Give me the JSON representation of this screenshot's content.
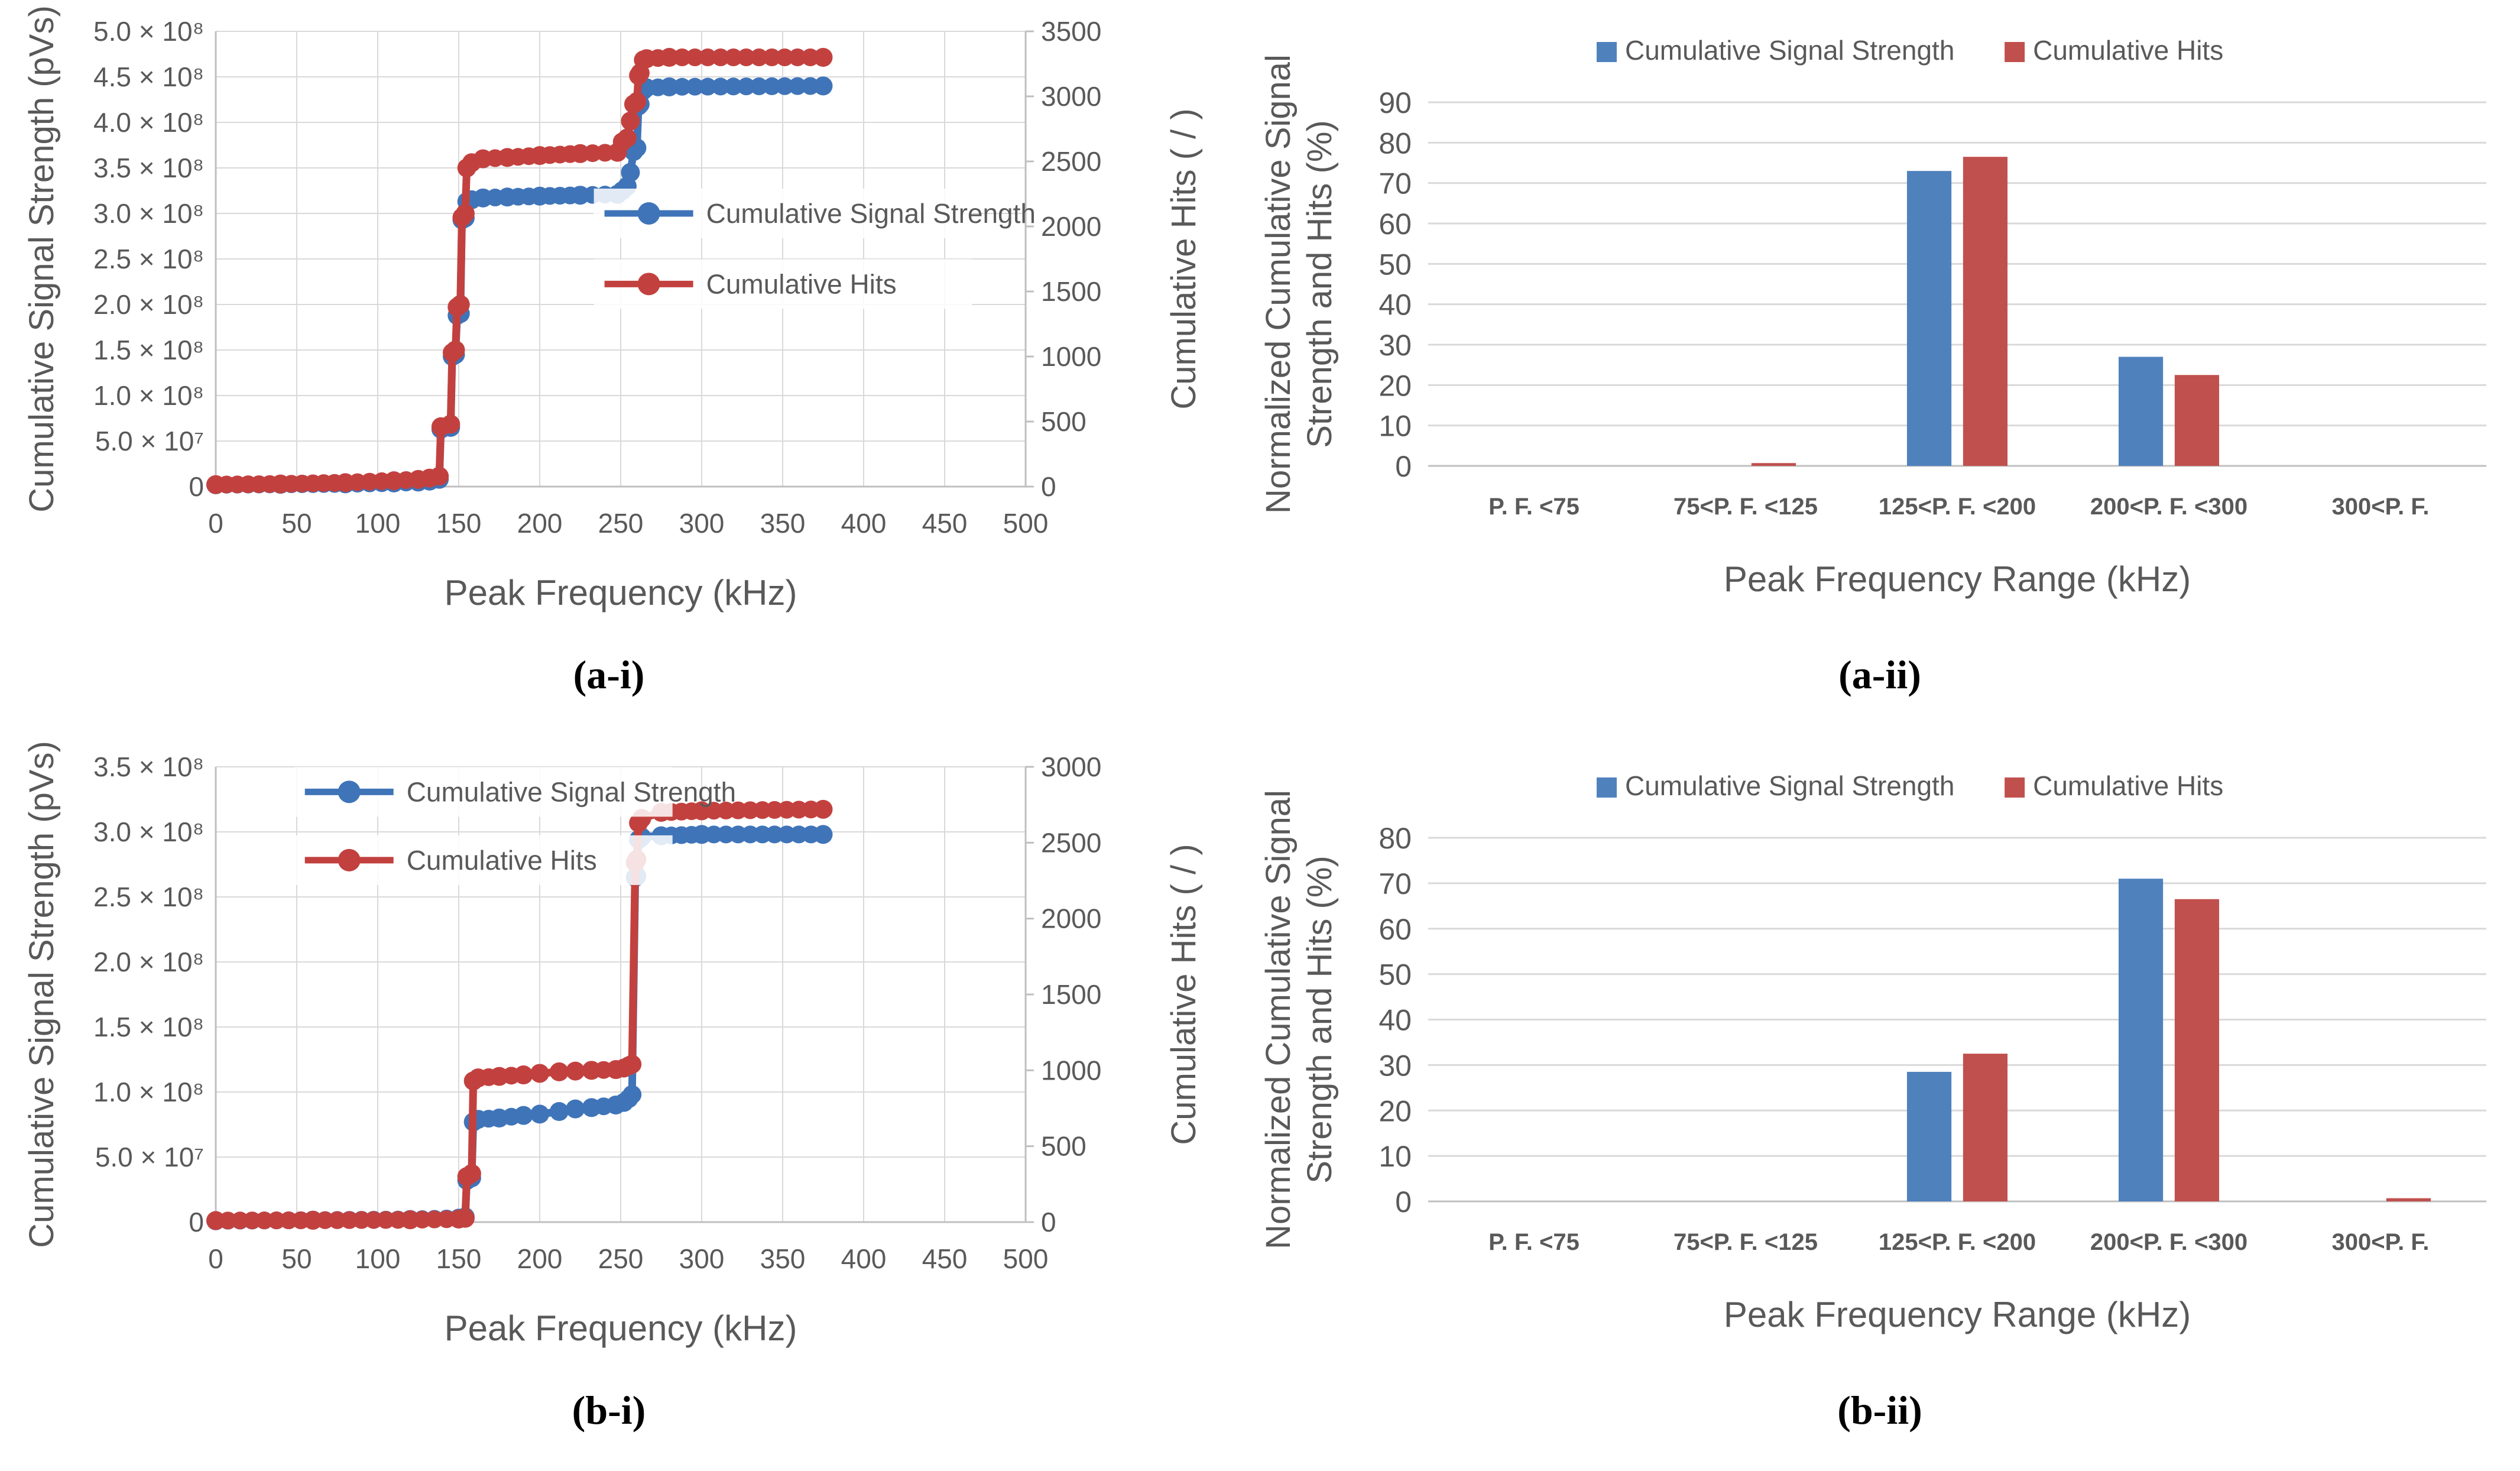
{
  "figure": {
    "captions": {
      "a_i": "(a-i)",
      "a_ii": "(a-ii)",
      "b_i": "(b-i)",
      "b_ii": "(b-ii)"
    }
  },
  "colors": {
    "signal_bar": "#4f81bd",
    "hits_bar": "#c0504d",
    "signal_line": "#3f74b8",
    "hits_line": "#c2413f",
    "grid": "#d9d9d9",
    "axis": "#bfbfbf",
    "text": "#595959"
  },
  "legend_labels": {
    "signal": "Cumulative Signal Strength",
    "hits": "Cumulative Hits"
  },
  "chart_data": [
    {
      "id": "a_i",
      "type": "line",
      "xlabel": "Peak Frequency (kHz)",
      "ylabel_left": "Cumulative Signal Strength (pVs)",
      "ylabel_right": "Cumulative Hits ( / )",
      "xlim": [
        0,
        500
      ],
      "xticks": [
        0,
        50,
        100,
        150,
        200,
        250,
        300,
        350,
        400,
        450,
        500
      ],
      "ylim_left": [
        0,
        500000000.0
      ],
      "yticks_left": {
        "values": [
          0,
          50000000.0,
          100000000.0,
          150000000.0,
          200000000.0,
          250000000.0,
          300000000.0,
          350000000.0,
          400000000.0,
          450000000.0,
          500000000.0
        ],
        "labels": [
          "0",
          "5.0 × 10⁷",
          "1.0 × 10⁸",
          "1.5 × 10⁸",
          "2.0 × 10⁸",
          "2.5 × 10⁸",
          "3.0 × 10⁸",
          "3.5 × 10⁸",
          "4.0 × 10⁸",
          "4.5 × 10⁸",
          "5.0 × 10⁸"
        ]
      },
      "ylim_right": [
        0,
        3500
      ],
      "yticks_right": [
        0,
        500,
        1000,
        1500,
        2000,
        2500,
        3000,
        3500
      ],
      "legend": [
        "Cumulative Signal Strength",
        "Cumulative Hits"
      ],
      "legend_position": "center-right-inside",
      "grid": true,
      "series": [
        {
          "name": "Cumulative Signal Strength",
          "axis": "left",
          "colorKey": "signal_line",
          "points": [
            [
              0,
              2000000.0
            ],
            [
              40,
              2500000.0
            ],
            [
              80,
              3000000.0
            ],
            [
              110,
              4000000.0
            ],
            [
              125,
              5000000.0
            ],
            [
              132,
              6000000.0
            ],
            [
              138,
              8000000.0
            ],
            [
              139,
              63000000.0
            ],
            [
              145,
              65000000.0
            ],
            [
              146,
              143000000.0
            ],
            [
              148,
              145000000.0
            ],
            [
              149,
              188000000.0
            ],
            [
              151,
              190000000.0
            ],
            [
              152,
              293000000.0
            ],
            [
              154,
              295000000.0
            ],
            [
              155,
              313000000.0
            ],
            [
              158,
              315000000.0
            ],
            [
              165,
              317000000.0
            ],
            [
              180,
              318000000.0
            ],
            [
              200,
              319000000.0
            ],
            [
              225,
              320000000.0
            ],
            [
              248,
              321000000.0
            ],
            [
              251,
              325000000.0
            ],
            [
              254,
              330000000.0
            ],
            [
              256,
              345000000.0
            ],
            [
              258,
              368000000.0
            ],
            [
              260,
              372000000.0
            ],
            [
              261,
              418000000.0
            ],
            [
              262,
              420000000.0
            ],
            [
              264,
              435000000.0
            ],
            [
              266,
              438000000.0
            ],
            [
              280,
              439000000.0
            ],
            [
              375,
              440000000.0
            ]
          ]
        },
        {
          "name": "Cumulative Hits",
          "axis": "right",
          "colorKey": "hits_line",
          "points": [
            [
              0,
              15
            ],
            [
              40,
              20
            ],
            [
              80,
              30
            ],
            [
              110,
              45
            ],
            [
              125,
              55
            ],
            [
              132,
              65
            ],
            [
              138,
              80
            ],
            [
              139,
              460
            ],
            [
              145,
              480
            ],
            [
              146,
              1030
            ],
            [
              148,
              1050
            ],
            [
              149,
              1380
            ],
            [
              151,
              1400
            ],
            [
              152,
              2070
            ],
            [
              154,
              2100
            ],
            [
              155,
              2450
            ],
            [
              158,
              2490
            ],
            [
              165,
              2520
            ],
            [
              180,
              2530
            ],
            [
              200,
              2545
            ],
            [
              225,
              2560
            ],
            [
              248,
              2570
            ],
            [
              251,
              2650
            ],
            [
              254,
              2680
            ],
            [
              256,
              2810
            ],
            [
              258,
              2940
            ],
            [
              260,
              2960
            ],
            [
              261,
              3160
            ],
            [
              262,
              3180
            ],
            [
              264,
              3280
            ],
            [
              266,
              3290
            ],
            [
              280,
              3300
            ],
            [
              375,
              3300
            ]
          ]
        }
      ]
    },
    {
      "id": "a_ii",
      "type": "bar",
      "xlabel": "Peak Frequency Range (kHz)",
      "ylabel": "Normalized Cumulative Signal Strength and Hits (%)",
      "ylabel_lines": [
        "Normalized Cumulative Signal",
        "Strength and Hits (%)"
      ],
      "categories": [
        "P. F. <75",
        "75<P. F. <125",
        "125<P. F. <200",
        "200<P. F. <300",
        "300<P. F."
      ],
      "ylim": [
        0,
        90
      ],
      "ytick_step": 10,
      "legend": [
        "Cumulative Signal Strength",
        "Cumulative Hits"
      ],
      "legend_position": "top-center",
      "grid": true,
      "series": [
        {
          "name": "Cumulative Signal Strength",
          "colorKey": "signal_bar",
          "values": [
            0,
            0,
            73,
            27,
            0
          ]
        },
        {
          "name": "Cumulative Hits",
          "colorKey": "hits_bar",
          "values": [
            0,
            0.7,
            76.5,
            22.5,
            0
          ]
        }
      ]
    },
    {
      "id": "b_i",
      "type": "line",
      "xlabel": "Peak Frequency (kHz)",
      "ylabel_left": "Cumulative Signal Strength (pVs)",
      "ylabel_right": "Cumulative Hits ( / )",
      "xlim": [
        0,
        500
      ],
      "xticks": [
        0,
        50,
        100,
        150,
        200,
        250,
        300,
        350,
        400,
        450,
        500
      ],
      "ylim_left": [
        0,
        350000000.0
      ],
      "yticks_left": {
        "values": [
          0,
          50000000.0,
          100000000.0,
          150000000.0,
          200000000.0,
          250000000.0,
          300000000.0,
          350000000.0
        ],
        "labels": [
          "0",
          "5.0 × 10⁷",
          "1.0 × 10⁸",
          "1.5 × 10⁸",
          "2.0 × 10⁸",
          "2.5 × 10⁸",
          "3.0 × 10⁸",
          "3.5 × 10⁸"
        ]
      },
      "ylim_right": [
        0,
        3000
      ],
      "yticks_right": [
        0,
        500,
        1000,
        1500,
        2000,
        2500,
        3000
      ],
      "legend": [
        "Cumulative Signal Strength",
        "Cumulative Hits"
      ],
      "legend_position": "top-left-inside",
      "grid": true,
      "series": [
        {
          "name": "Cumulative Signal Strength",
          "axis": "left",
          "colorKey": "signal_line",
          "points": [
            [
              0,
              1000000.0
            ],
            [
              60,
              1500000.0
            ],
            [
              120,
              2000000.0
            ],
            [
              150,
              3000000.0
            ],
            [
              154,
              4000000.0
            ],
            [
              155,
              32000000.0
            ],
            [
              158,
              34000000.0
            ],
            [
              159,
              77000000.0
            ],
            [
              162,
              79000000.0
            ],
            [
              175,
              80000000.0
            ],
            [
              190,
              82000000.0
            ],
            [
              200,
              83000000.0
            ],
            [
              212,
              85000000.0
            ],
            [
              222,
              87000000.0
            ],
            [
              232,
              88000000.0
            ],
            [
              247,
              90000000.0
            ],
            [
              252,
              92000000.0
            ],
            [
              255,
              95000000.0
            ],
            [
              257,
              98000000.0
            ],
            [
              259,
              265000000.0
            ],
            [
              260,
              266000000.0
            ],
            [
              261,
              294000000.0
            ],
            [
              263,
              296000000.0
            ],
            [
              275,
              297000000.0
            ],
            [
              300,
              298000000.0
            ],
            [
              375,
              298000000.0
            ]
          ]
        },
        {
          "name": "Cumulative Hits",
          "axis": "right",
          "colorKey": "hits_line",
          "points": [
            [
              0,
              10
            ],
            [
              60,
              12
            ],
            [
              120,
              15
            ],
            [
              150,
              20
            ],
            [
              154,
              25
            ],
            [
              155,
              300
            ],
            [
              158,
              320
            ],
            [
              159,
              930
            ],
            [
              162,
              950
            ],
            [
              175,
              960
            ],
            [
              190,
              970
            ],
            [
              200,
              980
            ],
            [
              212,
              990
            ],
            [
              222,
              995
            ],
            [
              232,
              1000
            ],
            [
              247,
              1005
            ],
            [
              252,
              1015
            ],
            [
              255,
              1030
            ],
            [
              257,
              1040
            ],
            [
              259,
              2370
            ],
            [
              260,
              2390
            ],
            [
              261,
              2630
            ],
            [
              263,
              2660
            ],
            [
              275,
              2700
            ],
            [
              300,
              2710
            ],
            [
              375,
              2720
            ]
          ]
        }
      ]
    },
    {
      "id": "b_ii",
      "type": "bar",
      "xlabel": "Peak Frequency Range (kHz)",
      "ylabel": "Normalized Cumulative Signal Strength and Hits (%)",
      "ylabel_lines": [
        "Normalized Cumulative Signal",
        "Strength and Hits (%)"
      ],
      "categories": [
        "P. F. <75",
        "75<P. F. <125",
        "125<P. F. <200",
        "200<P. F. <300",
        "300<P. F."
      ],
      "ylim": [
        0,
        80
      ],
      "ytick_step": 10,
      "legend": [
        "Cumulative Signal Strength",
        "Cumulative Hits"
      ],
      "legend_position": "top-center",
      "grid": true,
      "series": [
        {
          "name": "Cumulative Signal Strength",
          "colorKey": "signal_bar",
          "values": [
            0,
            0,
            28.5,
            71,
            0
          ]
        },
        {
          "name": "Cumulative Hits",
          "colorKey": "hits_bar",
          "values": [
            0,
            0,
            32.5,
            66.5,
            0.7
          ]
        }
      ]
    }
  ]
}
